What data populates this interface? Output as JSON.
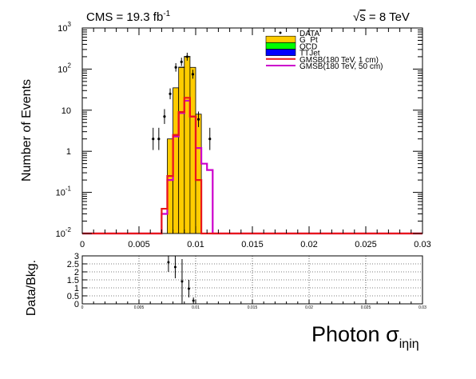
{
  "chart_data": [
    {
      "type": "bar",
      "title_left_prefix": "CMS = 19.3 fb",
      "title_left_sup": "-1",
      "title_right_root": "√",
      "title_right_s": "s",
      "title_right_rest": " = 8 TeV",
      "ylabel": "Number of Events",
      "y_scale": "log",
      "ylim": [
        0.01,
        1000
      ],
      "xlim": [
        0,
        0.03
      ],
      "y_tick_labels": [
        {
          "v": 0.01,
          "base": "10",
          "exp": "-2"
        },
        {
          "v": 0.1,
          "base": "10",
          "exp": "-1"
        },
        {
          "v": 1,
          "base": "1",
          "exp": ""
        },
        {
          "v": 10,
          "base": "10",
          "exp": ""
        },
        {
          "v": 100,
          "base": "10",
          "exp": "2"
        },
        {
          "v": 1000,
          "base": "10",
          "exp": "3"
        }
      ],
      "x_tick_labels": [
        {
          "v": 0,
          "label": "0"
        },
        {
          "v": 0.005,
          "label": "0.005"
        },
        {
          "v": 0.01,
          "label": "0.01"
        },
        {
          "v": 0.015,
          "label": "0.015"
        },
        {
          "v": 0.02,
          "label": "0.02"
        },
        {
          "v": 0.025,
          "label": "0.025"
        },
        {
          "v": 0.03,
          "label": "0.03"
        }
      ],
      "legend_position": "top-right",
      "legend": [
        {
          "label": "DATA",
          "style": "marker",
          "color": "#000000"
        },
        {
          "label": "G_Pt",
          "style": "fill",
          "color": "#ffcc00"
        },
        {
          "label": "QCD",
          "style": "fill",
          "color": "#00ff00"
        },
        {
          "label": "TTJet",
          "style": "fill",
          "color": "#0000ff"
        },
        {
          "label": "GMSB(180 TeV, 1 cm)",
          "style": "line",
          "color": "#e8171b"
        },
        {
          "label": "GMSB(180 TeV, 50 cm)",
          "style": "line",
          "color": "#cc00cc"
        }
      ],
      "bin_width": 0.0005,
      "stack": [
        {
          "name": "G_Pt",
          "color": "#ffcc00",
          "bins": [
            [
              0.0075,
              2
            ],
            [
              0.008,
              35
            ],
            [
              0.0085,
              110
            ],
            [
              0.009,
              200
            ],
            [
              0.0095,
              110
            ],
            [
              0.01,
              8
            ]
          ]
        },
        {
          "name": "TTJet",
          "color": "#0000ff",
          "bins": [
            [
              0.0085,
              1.4
            ],
            [
              0.009,
              3.5
            ]
          ]
        }
      ],
      "signal_1cm": {
        "color": "#e8171b",
        "bins": [
          [
            0.007,
            0.04
          ],
          [
            0.0075,
            0.25
          ],
          [
            0.008,
            2.5
          ],
          [
            0.0085,
            9
          ],
          [
            0.009,
            20
          ],
          [
            0.0095,
            7
          ],
          [
            0.01,
            0.2
          ]
        ]
      },
      "signal_50cm": {
        "color": "#cc00cc",
        "bins": [
          [
            0.007,
            0.03
          ],
          [
            0.0075,
            0.2
          ],
          [
            0.008,
            2.3
          ],
          [
            0.0085,
            8.5
          ],
          [
            0.009,
            17
          ],
          [
            0.0095,
            7
          ],
          [
            0.01,
            1.2
          ],
          [
            0.0105,
            0.5
          ],
          [
            0.011,
            0.35
          ]
        ]
      },
      "data_points": [
        {
          "x": 0.00625,
          "y": 2
        },
        {
          "x": 0.00675,
          "y": 2
        },
        {
          "x": 0.00725,
          "y": 7
        },
        {
          "x": 0.00775,
          "y": 25
        },
        {
          "x": 0.00825,
          "y": 110
        },
        {
          "x": 0.00875,
          "y": 150
        },
        {
          "x": 0.00925,
          "y": 200
        },
        {
          "x": 0.00975,
          "y": 75
        },
        {
          "x": 0.01025,
          "y": 6
        },
        {
          "x": 0.01125,
          "y": 2
        }
      ]
    },
    {
      "type": "scatter",
      "ylabel": "Data/Bkg.",
      "xlabel_main": "Photon σ",
      "xlabel_sub": "iηiη",
      "ylim": [
        0,
        3
      ],
      "xlim": [
        0,
        0.03
      ],
      "grid": true,
      "y_tick_labels": [
        "0",
        "0.5",
        "1",
        "1.5",
        "2",
        "2.5",
        "3"
      ],
      "y_tick_values": [
        0,
        0.5,
        1,
        1.5,
        2,
        2.5,
        3
      ],
      "x_tick_labels": [
        {
          "v": 0,
          "label": "0"
        },
        {
          "v": 0.005,
          "label": "0.005"
        },
        {
          "v": 0.01,
          "label": "0.01"
        },
        {
          "v": 0.015,
          "label": "0.015"
        },
        {
          "v": 0.02,
          "label": "0.02"
        },
        {
          "v": 0.025,
          "label": "0.025"
        },
        {
          "v": 0.03,
          "label": "0.03"
        }
      ],
      "points": [
        {
          "x": 0.0076,
          "y": 2.6,
          "err": 0.6
        },
        {
          "x": 0.0082,
          "y": 2.3,
          "err": 0.7
        },
        {
          "x": 0.0088,
          "y": 1.4,
          "err": 1.4
        },
        {
          "x": 0.0094,
          "y": 0.95,
          "err": 0.55
        },
        {
          "x": 0.0098,
          "y": 0.2,
          "err": 0.2
        }
      ]
    }
  ]
}
